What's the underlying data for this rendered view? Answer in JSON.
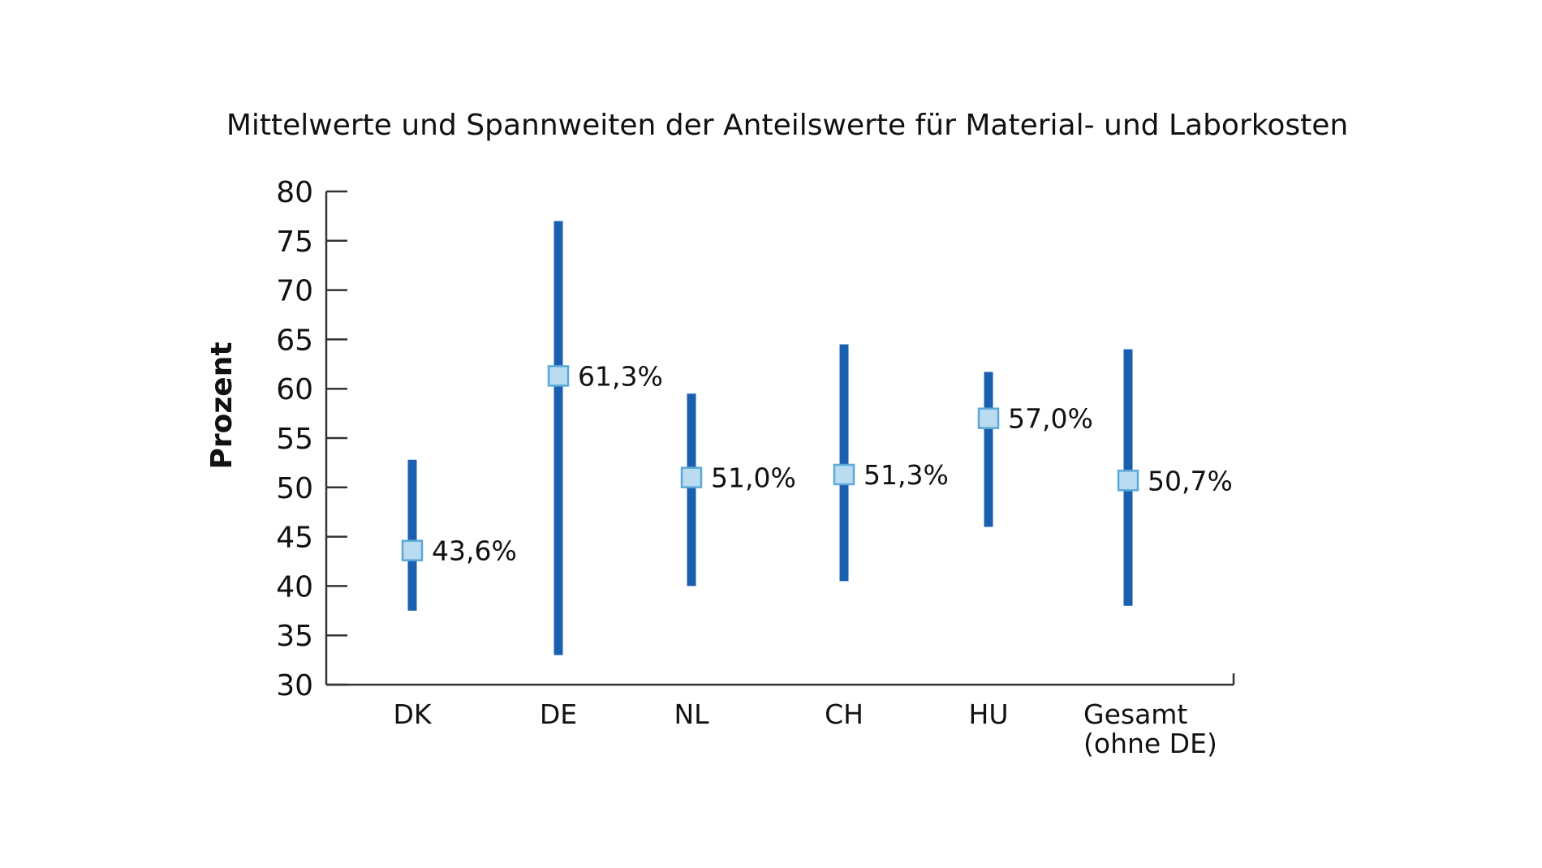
{
  "chart_data": {
    "type": "errorbar",
    "title": "Mittelwerte und Spannweiten der Anteilswerte für Material- und Laborkosten",
    "xlabel": "",
    "ylabel": "Prozent",
    "ylim": [
      30,
      80
    ],
    "yticks": [
      30,
      35,
      40,
      45,
      50,
      55,
      60,
      65,
      70,
      75,
      80
    ],
    "grid": false,
    "legend": "none",
    "categories": [
      {
        "lines": [
          "DK"
        ],
        "min": 37.5,
        "max": 52.8,
        "mean": 43.6,
        "mean_label": "43,6%"
      },
      {
        "lines": [
          "DE"
        ],
        "min": 33.0,
        "max": 77.0,
        "mean": 61.3,
        "mean_label": "61,3%"
      },
      {
        "lines": [
          "NL"
        ],
        "min": 40.0,
        "max": 59.5,
        "mean": 51.0,
        "mean_label": "51,0%"
      },
      {
        "lines": [
          "CH"
        ],
        "min": 40.5,
        "max": 64.5,
        "mean": 51.3,
        "mean_label": "51,3%"
      },
      {
        "lines": [
          "HU"
        ],
        "min": 46.0,
        "max": 61.7,
        "mean": 57.0,
        "mean_label": "57,0%"
      },
      {
        "lines": [
          "Gesamt",
          "(ohne DE)"
        ],
        "min": 38.0,
        "max": 64.0,
        "mean": 50.7,
        "mean_label": "50,7%"
      }
    ],
    "colors": {
      "range_bar": "#1a5fb0",
      "marker_fill": "#b9dcf0",
      "marker_stroke": "#5aa8d8",
      "axis": "#333333",
      "text": "#111111"
    }
  }
}
